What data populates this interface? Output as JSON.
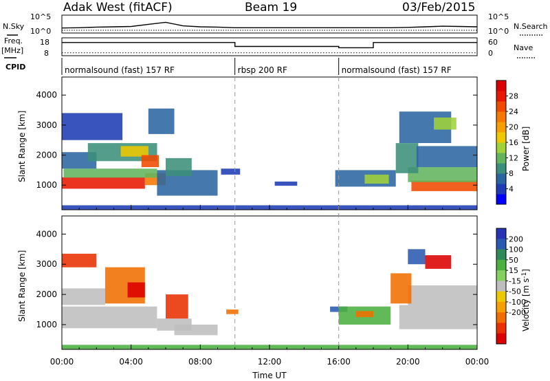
{
  "header": {
    "station": "Adak West (fitACF)",
    "beam": "Beam 19",
    "date": "03/Feb/2015"
  },
  "panel_labels": {
    "nsky": "N.Sky",
    "nsearch": "N.Search",
    "freq": "Freq.",
    "freq_unit": "[MHz]",
    "nave": "Nave",
    "cpid": "CPID"
  },
  "colors": {
    "trace": "#000000",
    "divider": "#999999",
    "ground_scatter": "#bebebe"
  },
  "chart_data": [
    {
      "type": "line",
      "id": "noise",
      "ylabel_left": "N.Sky",
      "ylabel_right": "N.Search",
      "left_ticks": [
        "10^5",
        "10^0"
      ],
      "right_ticks": [
        "10^5",
        "10^0"
      ],
      "xlim": [
        0,
        24
      ],
      "series": [
        {
          "values": [
            1.2,
            1.3,
            1.5,
            1.6,
            1.7,
            2.4,
            3.1,
            1.9,
            1.6,
            1.5,
            1.3,
            1.3,
            1.3,
            1.3,
            1.3,
            1.3,
            1.3,
            1.3,
            1.3,
            1.3,
            1.4,
            1.6,
            1.8,
            1.7,
            1.6
          ]
        }
      ]
    },
    {
      "type": "line",
      "id": "frequency",
      "ylabel_left": "Freq. [MHz]",
      "ylabel_right": "Nave",
      "left_ticks": [
        "18",
        "8"
      ],
      "right_ticks": [
        "60",
        "0"
      ],
      "xlim": [
        0,
        24
      ],
      "series": [
        {
          "name": "Freq",
          "x": [
            0,
            10,
            10,
            16,
            16,
            18,
            18,
            24
          ],
          "values": [
            15.6,
            15.6,
            13.2,
            13.2,
            12.4,
            12.4,
            15.6,
            15.6
          ]
        },
        {
          "name": "Nave",
          "x": [
            0,
            24
          ],
          "values": [
            8,
            8
          ]
        }
      ]
    },
    {
      "type": "table",
      "id": "cpid",
      "segments": [
        {
          "label": "normalsound (fast) 157 RF",
          "start": 0,
          "end": 10
        },
        {
          "label": "rbsp 200 RF",
          "start": 10,
          "end": 16
        },
        {
          "label": "normalsound (fast) 157 RF",
          "start": 16,
          "end": 24
        }
      ]
    },
    {
      "type": "heatmap",
      "id": "power",
      "ylabel": "Slant Range [km]",
      "ylim": [
        180,
        4600
      ],
      "y_ticks": [
        1000,
        2000,
        3000,
        4000
      ],
      "xlim": [
        0,
        24
      ],
      "colorbar": {
        "label": "Power [dB]",
        "range": [
          0,
          32
        ],
        "tick_labels": [
          4,
          8,
          12,
          16,
          20,
          24,
          28
        ],
        "colors": [
          "#0000ff",
          "#1e3cb4",
          "#2b65a0",
          "#3b8f7a",
          "#62b55d",
          "#9fd23a",
          "#f0c800",
          "#f5a000",
          "#f57800",
          "#f04a00",
          "#e81800",
          "#dc0000"
        ]
      },
      "regions": [
        {
          "t0": 0.0,
          "t1": 4.8,
          "r0": 880,
          "r1": 1260,
          "value": 27
        },
        {
          "t0": 4.8,
          "t1": 6.0,
          "r0": 1000,
          "r1": 1400,
          "value": 22
        },
        {
          "t0": 0.1,
          "t1": 5.5,
          "r0": 1250,
          "r1": 1550,
          "value": 12
        },
        {
          "t0": 0.0,
          "t1": 2.0,
          "r0": 1550,
          "r1": 2100,
          "value": 6
        },
        {
          "t0": 1.5,
          "t1": 5.5,
          "r0": 1800,
          "r1": 2400,
          "value": 9
        },
        {
          "t0": 3.4,
          "t1": 5.0,
          "r0": 1950,
          "r1": 2300,
          "value": 18
        },
        {
          "t0": 4.6,
          "t1": 5.6,
          "r0": 1600,
          "r1": 2000,
          "value": 26
        },
        {
          "t0": 0.0,
          "t1": 3.5,
          "r0": 2500,
          "r1": 3400,
          "value": 5
        },
        {
          "t0": 5.0,
          "t1": 6.5,
          "r0": 2700,
          "r1": 3550,
          "value": 6
        },
        {
          "t0": 5.5,
          "t1": 9.0,
          "r0": 650,
          "r1": 1500,
          "value": 6
        },
        {
          "t0": 6.0,
          "t1": 7.5,
          "r0": 1300,
          "r1": 1900,
          "value": 8
        },
        {
          "t0": 9.2,
          "t1": 10.3,
          "r0": 1350,
          "r1": 1550,
          "value": 5
        },
        {
          "t0": 12.3,
          "t1": 13.6,
          "r0": 980,
          "r1": 1120,
          "value": 5
        },
        {
          "t0": 15.8,
          "t1": 19.3,
          "r0": 950,
          "r1": 1500,
          "value": 7
        },
        {
          "t0": 17.5,
          "t1": 18.9,
          "r0": 1050,
          "r1": 1350,
          "value": 14
        },
        {
          "t0": 20.2,
          "t1": 24.0,
          "r0": 800,
          "r1": 1150,
          "value": 26
        },
        {
          "t0": 20.0,
          "t1": 24.0,
          "r0": 1100,
          "r1": 1600,
          "value": 12
        },
        {
          "t0": 19.3,
          "t1": 20.6,
          "r0": 1400,
          "r1": 2400,
          "value": 10
        },
        {
          "t0": 20.5,
          "t1": 24.0,
          "r0": 1600,
          "r1": 2300,
          "value": 6
        },
        {
          "t0": 19.5,
          "t1": 22.5,
          "r0": 2400,
          "r1": 3450,
          "value": 6
        },
        {
          "t0": 21.5,
          "t1": 22.8,
          "r0": 2850,
          "r1": 3250,
          "value": 14
        },
        {
          "t0": 0.0,
          "t1": 24.0,
          "r0": 180,
          "r1": 330,
          "value": 5
        }
      ]
    },
    {
      "type": "heatmap",
      "id": "velocity",
      "ylabel": "Slant Range [km]",
      "xlabel": "Time UT",
      "ylim": [
        180,
        4600
      ],
      "y_ticks": [
        1000,
        2000,
        3000,
        4000
      ],
      "xlim": [
        0,
        24
      ],
      "x_tick_labels": [
        "00:00",
        "04:00",
        "08:00",
        "12:00",
        "16:00",
        "20:00",
        "00:00"
      ],
      "colorbar": {
        "label": "Velocity [m s^-1]",
        "tick_labels": [
          200,
          100,
          50,
          15,
          -15,
          -50,
          -100,
          -200
        ],
        "colors": [
          "#2834b4",
          "#2a5ab0",
          "#2f8a5a",
          "#4bb040",
          "#86d060",
          "#bebebe",
          "#f0c800",
          "#f5a000",
          "#f06e00",
          "#e83000",
          "#dc0000"
        ]
      },
      "regions": [
        {
          "t0": 0.0,
          "t1": 5.5,
          "r0": 880,
          "r1": 1600,
          "value": 0
        },
        {
          "t0": 5.5,
          "t1": 7.5,
          "r0": 800,
          "r1": 1200,
          "value": 0
        },
        {
          "t0": 6.5,
          "t1": 9.0,
          "r0": 650,
          "r1": 1000,
          "value": 0
        },
        {
          "t0": 0.0,
          "t1": 2.5,
          "r0": 1650,
          "r1": 2200,
          "value": 0
        },
        {
          "t0": 2.5,
          "t1": 4.8,
          "r0": 1700,
          "r1": 2900,
          "value": -90
        },
        {
          "t0": 3.8,
          "t1": 4.8,
          "r0": 1900,
          "r1": 2400,
          "value": -220
        },
        {
          "t0": 6.0,
          "t1": 7.3,
          "r0": 1200,
          "r1": 2000,
          "value": -140
        },
        {
          "t0": 0.0,
          "t1": 2.0,
          "r0": 2900,
          "r1": 3350,
          "value": -170
        },
        {
          "t0": 9.5,
          "t1": 10.2,
          "r0": 1350,
          "r1": 1500,
          "value": -70
        },
        {
          "t0": 15.5,
          "t1": 16.5,
          "r0": 1420,
          "r1": 1600,
          "value": 120
        },
        {
          "t0": 16.0,
          "t1": 19.0,
          "r0": 1000,
          "r1": 1600,
          "value": 30
        },
        {
          "t0": 17.0,
          "t1": 18.0,
          "r0": 1250,
          "r1": 1450,
          "value": -60
        },
        {
          "t0": 19.5,
          "t1": 24.0,
          "r0": 850,
          "r1": 1650,
          "value": 0
        },
        {
          "t0": 20.0,
          "t1": 24.0,
          "r0": 1650,
          "r1": 2300,
          "value": 0
        },
        {
          "t0": 19.0,
          "t1": 20.2,
          "r0": 1700,
          "r1": 2700,
          "value": -60
        },
        {
          "t0": 21.0,
          "t1": 22.5,
          "r0": 2850,
          "r1": 3300,
          "value": -200
        },
        {
          "t0": 20.0,
          "t1": 21.0,
          "r0": 3000,
          "r1": 3500,
          "value": 120
        },
        {
          "t0": 0.0,
          "t1": 24.0,
          "r0": 180,
          "r1": 330,
          "value": 20
        }
      ]
    }
  ]
}
